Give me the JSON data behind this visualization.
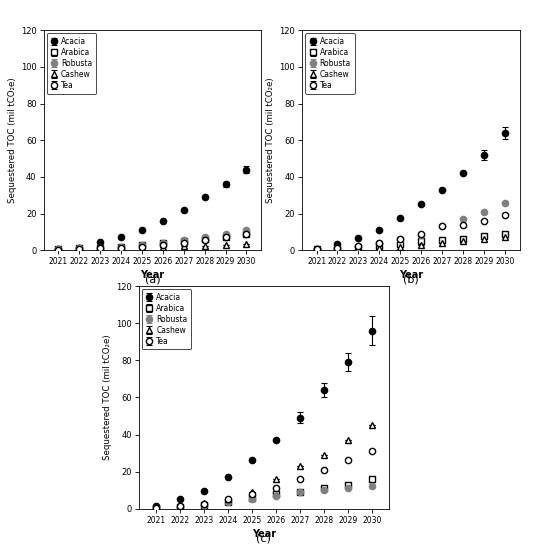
{
  "years": [
    2021,
    2022,
    2023,
    2024,
    2025,
    2026,
    2027,
    2028,
    2029,
    2030
  ],
  "ylim": [
    0,
    120
  ],
  "yticks": [
    0,
    20,
    40,
    60,
    80,
    100,
    120
  ],
  "ylabel": "Sequestered TOC (mil tCO₂e)",
  "xlabel": "Year",
  "panel_a": {
    "Acacia": [
      0.5,
      1.5,
      4.5,
      7.5,
      11,
      16,
      22,
      29,
      36,
      44
    ],
    "Arabica": [
      0.5,
      1.0,
      1.5,
      2.0,
      3.0,
      4.0,
      5.0,
      6.0,
      7.0,
      9.0
    ],
    "Robusta": [
      0.5,
      1.0,
      1.5,
      2.0,
      3.0,
      4.0,
      5.5,
      7.0,
      9.0,
      11.0
    ],
    "Cashew": [
      0.2,
      0.5,
      0.8,
      1.0,
      1.5,
      2.0,
      2.5,
      2.5,
      3.0,
      3.5
    ],
    "Tea": [
      0.3,
      0.5,
      1.0,
      1.5,
      2.0,
      3.0,
      4.0,
      5.5,
      7.0,
      9.0
    ],
    "Acacia_err": [
      0,
      0,
      0,
      0,
      0,
      0,
      0,
      0,
      1.5,
      2.0
    ]
  },
  "panel_b": {
    "Acacia": [
      0.5,
      3.5,
      6.5,
      11,
      17.5,
      25,
      33,
      42,
      52,
      64
    ],
    "Arabica": [
      0.5,
      1.0,
      1.5,
      2.5,
      3.5,
      5.0,
      5.5,
      6.0,
      8.0,
      9.0
    ],
    "Robusta": [
      0.5,
      1.5,
      2.5,
      4.0,
      6.0,
      8.5,
      13.0,
      17.0,
      21.0,
      26.0
    ],
    "Cashew": [
      0.2,
      0.5,
      1.0,
      1.5,
      2.0,
      3.0,
      4.0,
      5.0,
      6.0,
      7.0
    ],
    "Tea": [
      0.5,
      1.5,
      2.5,
      4.0,
      6.0,
      9.0,
      13.0,
      14.0,
      16.0,
      19.0
    ],
    "Acacia_err": [
      0,
      0,
      0,
      0,
      0,
      0,
      0,
      0,
      2.5,
      3.5
    ]
  },
  "panel_c": {
    "Acacia": [
      1.5,
      5.0,
      9.5,
      17,
      26,
      37,
      49,
      64,
      79,
      96
    ],
    "Arabica": [
      0.5,
      1.0,
      2.0,
      3.5,
      6.0,
      8.0,
      9.0,
      11.0,
      13.0,
      16.0
    ],
    "Robusta": [
      0.5,
      1.0,
      2.0,
      3.5,
      5.0,
      7.0,
      9.0,
      10.0,
      11.0,
      12.0
    ],
    "Cashew": [
      0.5,
      1.5,
      3.0,
      5.5,
      9.0,
      16.0,
      23.0,
      29.0,
      37.0,
      45.0
    ],
    "Tea": [
      0.5,
      1.5,
      2.5,
      5.0,
      8.0,
      11.0,
      16.0,
      21.0,
      26.0,
      31.0
    ],
    "Acacia_err": [
      0,
      0,
      0,
      0,
      0,
      0,
      3.0,
      4.0,
      5.0,
      8.0
    ]
  },
  "series_names": [
    "Acacia",
    "Arabica",
    "Robusta",
    "Cashew",
    "Tea"
  ],
  "markers": [
    "o",
    "s",
    "o",
    "^",
    "o"
  ],
  "mfc": [
    "black",
    "white",
    "gray",
    "white",
    "white"
  ],
  "mec": [
    "black",
    "black",
    "gray",
    "black",
    "black"
  ],
  "ms": 4.5
}
